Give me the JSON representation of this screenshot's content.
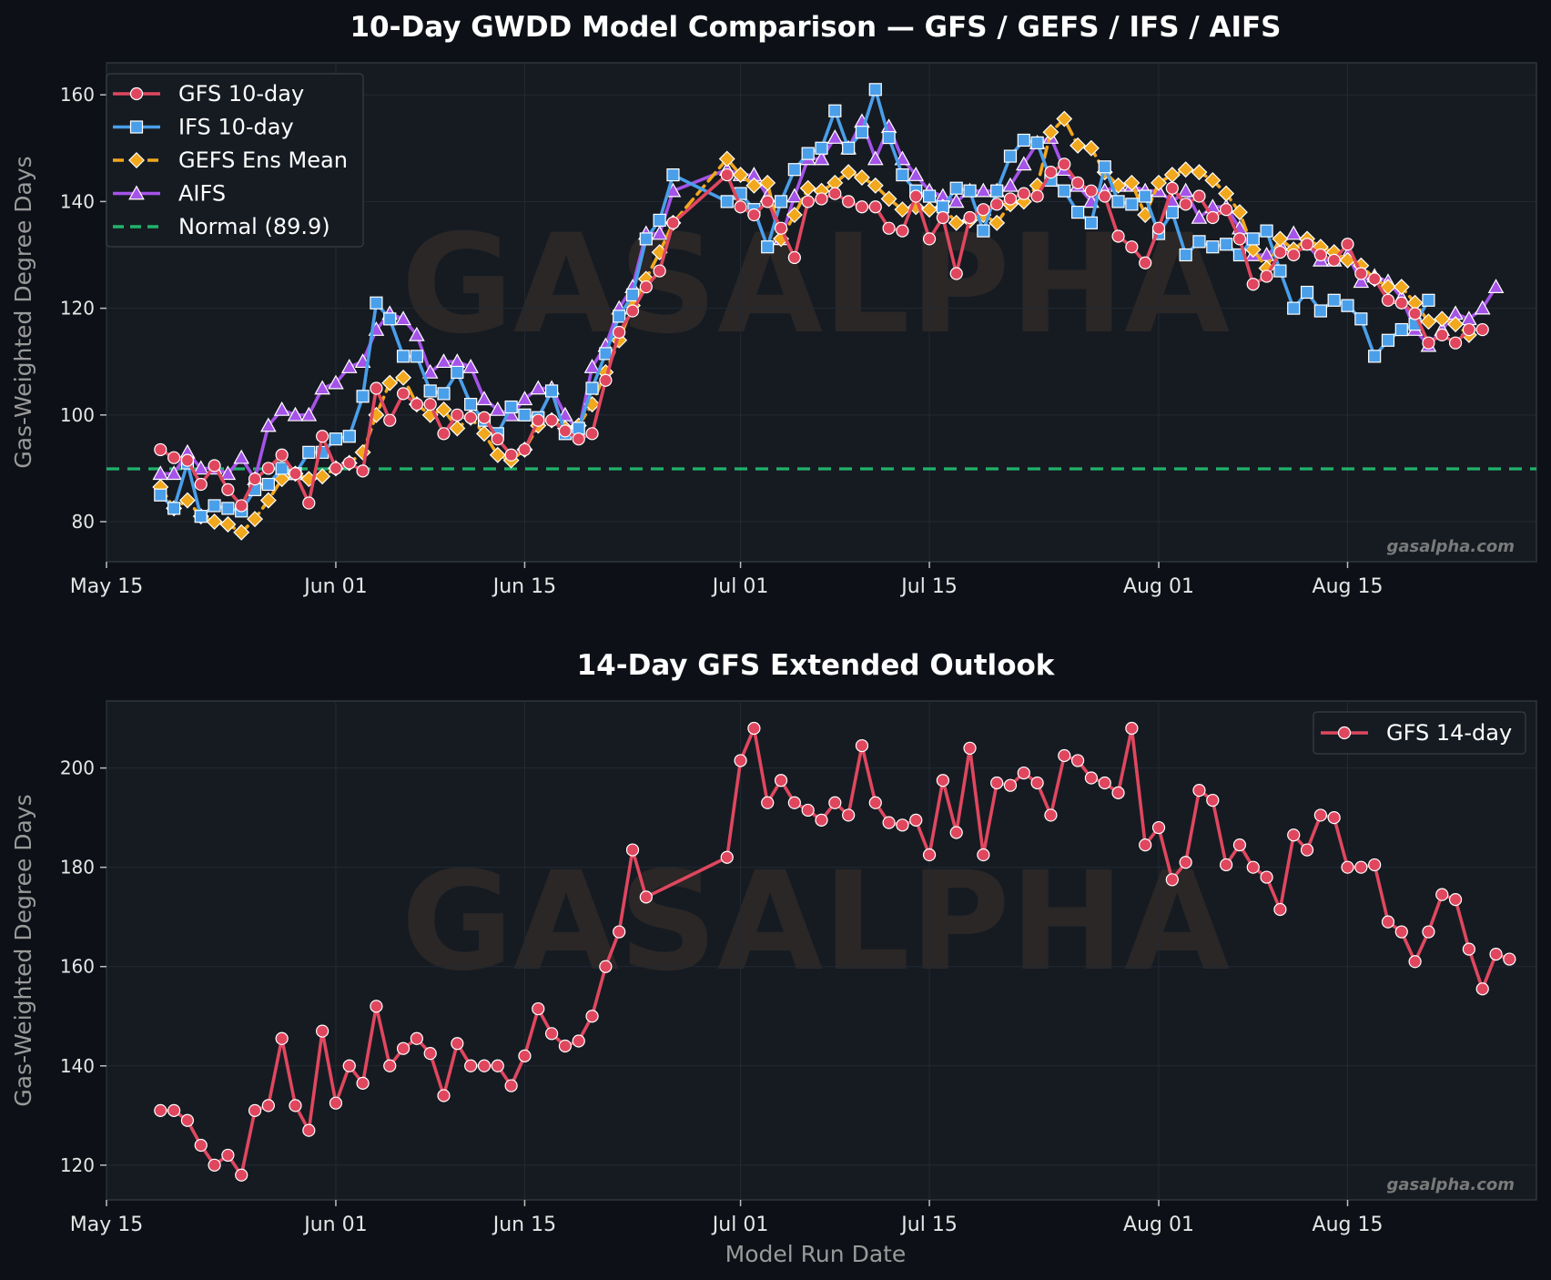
{
  "colors": {
    "background": "#0d1117",
    "panel": "#161b22",
    "grid": "#232a33",
    "gfs": "#e0475f",
    "ifs": "#4a9fea",
    "gefs": "#f2a81d",
    "aifs": "#a553e8",
    "normal": "#21b36b"
  },
  "watermark": "GASALPHA",
  "credit": "gasalpha.com",
  "chart_data": [
    {
      "type": "line",
      "title": "10-Day GWDD Model Comparison — GFS / GEFS / IFS / AIFS",
      "xlabel": "",
      "ylabel": "Gas-Weighted Degree Days",
      "x_type": "date",
      "xlim": [
        "2025-05-15",
        "2025-08-29"
      ],
      "ylim": [
        72.5,
        166
      ],
      "y_ticks": [
        80,
        100,
        120,
        140,
        160
      ],
      "x_ticks": [
        {
          "date": "2025-05-15",
          "label": "May 15"
        },
        {
          "date": "2025-06-01",
          "label": "Jun 01"
        },
        {
          "date": "2025-06-15",
          "label": "Jun 15"
        },
        {
          "date": "2025-07-01",
          "label": "Jul 01"
        },
        {
          "date": "2025-07-15",
          "label": "Jul 15"
        },
        {
          "date": "2025-08-01",
          "label": "Aug 01"
        },
        {
          "date": "2025-08-15",
          "label": "Aug 15"
        }
      ],
      "grid": true,
      "legend_position": "top-left",
      "legend": [
        {
          "label": "GFS 10-day",
          "color": "#e0475f",
          "marker": "circle",
          "dash": false
        },
        {
          "label": "IFS 10-day",
          "color": "#4a9fea",
          "marker": "square",
          "dash": false
        },
        {
          "label": "GEFS Ens Mean",
          "color": "#f2a81d",
          "marker": "diamond",
          "dash": true
        },
        {
          "label": "AIFS",
          "color": "#a553e8",
          "marker": "triangle",
          "dash": false
        },
        {
          "label": "Normal (89.9)",
          "color": "#21b36b",
          "marker": "none",
          "dash": true
        }
      ],
      "reference_line": {
        "label": "Normal (89.9)",
        "value": 89.9
      },
      "series": [
        {
          "name": "AIFS",
          "color": "#a553e8",
          "marker": "triangle",
          "dash": false,
          "start": "2025-05-19",
          "skip_after": "2025-06-26",
          "resume": "2025-06-30",
          "values": [
            89,
            89,
            93,
            90,
            90,
            89,
            92,
            88,
            98,
            101,
            100,
            100,
            105,
            106,
            109,
            110,
            116,
            119,
            118,
            115,
            108,
            110,
            110,
            109,
            103,
            101,
            100,
            103,
            105,
            105,
            100,
            97,
            109,
            113,
            120,
            124,
            134,
            134,
            142,
            146,
            145,
            145,
            141,
            133,
            141,
            148,
            148,
            152,
            150,
            155,
            148,
            154,
            148,
            145,
            142,
            141,
            140,
            142,
            142,
            142,
            143,
            147,
            151,
            152,
            146,
            143,
            140,
            142,
            143,
            143,
            142,
            142,
            140,
            142,
            137,
            139,
            139,
            135,
            130,
            130,
            132,
            134,
            132,
            129,
            129,
            130,
            125,
            126,
            125,
            122,
            116,
            113,
            116,
            119,
            118,
            120,
            124
          ]
        },
        {
          "name": "GEFS Ens Mean",
          "color": "#f2a81d",
          "marker": "diamond",
          "dash": true,
          "start": "2025-05-19",
          "skip_after": "2025-06-26",
          "resume": "2025-06-30",
          "values": [
            86.5,
            82.5,
            84,
            81,
            80,
            79.5,
            78,
            80.5,
            84,
            88,
            89,
            88,
            88.5,
            90,
            91,
            93,
            100,
            106,
            107,
            102,
            100,
            101,
            97.5,
            99.5,
            96.5,
            92.5,
            91.5,
            93.5,
            98,
            99,
            97.5,
            98,
            102,
            108,
            114,
            120.5,
            125.5,
            130.5,
            136,
            148,
            145,
            143,
            143.5,
            133,
            137.5,
            142.5,
            142,
            143.5,
            145.5,
            144.5,
            143,
            140.5,
            138.5,
            139,
            138.5,
            139,
            136,
            136.5,
            137.5,
            136,
            139.5,
            140,
            143,
            153,
            155.5,
            150.5,
            150,
            145.5,
            143,
            143.5,
            137.5,
            143.5,
            145,
            146,
            145.5,
            144,
            141.5,
            138,
            131,
            127.5,
            133,
            131,
            133,
            131.5,
            130.5,
            129,
            128,
            125.5,
            124,
            124,
            121,
            117.5,
            118,
            117,
            115
          ]
        },
        {
          "name": "IFS 10-day",
          "color": "#4a9fea",
          "marker": "square",
          "dash": false,
          "start": "2025-05-19",
          "skip_after": "2025-06-26",
          "resume": "2025-06-30",
          "values": [
            85,
            82.5,
            91,
            81,
            83,
            82.5,
            82,
            86,
            87,
            90,
            89,
            93,
            93,
            95.5,
            96,
            103.5,
            121,
            118,
            111,
            111,
            104.5,
            104,
            108,
            102,
            99,
            96.5,
            101.5,
            100,
            99.5,
            104.5,
            96.5,
            97.5,
            105,
            111.5,
            118.5,
            122.5,
            133,
            136.5,
            145,
            140,
            141.5,
            138.5,
            131.5,
            140,
            146,
            149,
            150,
            157,
            150,
            153,
            161,
            152,
            145,
            142,
            141,
            139,
            142.5,
            142,
            134.5,
            142,
            148.5,
            151.5,
            151,
            144,
            142,
            138,
            136,
            146.5,
            140,
            139.5,
            141,
            134,
            138,
            130,
            132.5,
            131.5,
            132,
            130,
            133,
            134.5,
            127,
            120,
            123,
            119.5,
            121.5,
            120.5,
            118,
            111,
            114,
            116,
            117,
            121.5
          ]
        },
        {
          "name": "GFS 10-day",
          "color": "#e0475f",
          "marker": "circle",
          "dash": false,
          "start": "2025-05-19",
          "skip_after": "2025-06-26",
          "resume": "2025-06-30",
          "values": [
            93.5,
            92,
            91.5,
            87,
            90.5,
            86,
            83,
            88,
            90,
            92.5,
            89,
            83.5,
            96,
            90,
            91,
            89.5,
            105,
            99,
            104,
            102,
            102,
            96.5,
            100,
            99.5,
            99.5,
            95.5,
            92.5,
            93.5,
            99,
            99,
            97,
            95.5,
            96.5,
            106.5,
            115.5,
            119.5,
            124,
            127,
            136,
            145,
            139,
            137.5,
            140,
            135,
            129.5,
            140,
            140.5,
            141.5,
            140,
            139,
            139,
            135,
            134.5,
            141,
            133,
            137,
            126.5,
            137,
            138.5,
            139.5,
            140.5,
            141.5,
            141,
            145.5,
            147,
            143.5,
            142,
            141,
            133.5,
            131.5,
            128.5,
            135,
            142.5,
            139.5,
            141,
            137,
            138.5,
            133,
            124.5,
            126,
            130.5,
            130,
            132,
            130,
            129,
            132,
            126.5,
            125.5,
            121.5,
            121,
            119,
            113.5,
            115,
            113.5,
            116,
            116
          ]
        }
      ]
    },
    {
      "type": "line",
      "title": "14-Day GFS Extended Outlook",
      "xlabel": "Model Run Date",
      "ylabel": "Gas-Weighted Degree Days",
      "x_type": "date",
      "xlim": [
        "2025-05-15",
        "2025-08-29"
      ],
      "ylim": [
        113,
        213.5
      ],
      "y_ticks": [
        120,
        140,
        160,
        180,
        200
      ],
      "x_ticks": [
        {
          "date": "2025-05-15",
          "label": "May 15"
        },
        {
          "date": "2025-06-01",
          "label": "Jun 01"
        },
        {
          "date": "2025-06-15",
          "label": "Jun 15"
        },
        {
          "date": "2025-07-01",
          "label": "Jul 01"
        },
        {
          "date": "2025-07-15",
          "label": "Jul 15"
        },
        {
          "date": "2025-08-01",
          "label": "Aug 01"
        },
        {
          "date": "2025-08-15",
          "label": "Aug 15"
        }
      ],
      "grid": true,
      "legend_position": "top-right",
      "legend": [
        {
          "label": "GFS 14-day",
          "color": "#e0475f",
          "marker": "circle",
          "dash": false
        }
      ],
      "series": [
        {
          "name": "GFS 14-day",
          "color": "#e0475f",
          "marker": "circle",
          "dash": false,
          "start": "2025-05-19",
          "skip_after": "2025-06-24",
          "resume": "2025-06-30",
          "values": [
            131,
            131,
            129,
            124,
            120,
            122,
            118,
            131,
            132,
            145.5,
            132,
            127,
            147,
            132.5,
            140,
            136.5,
            152,
            140,
            143.5,
            145.5,
            142.5,
            134,
            144.5,
            140,
            140,
            140,
            136,
            142,
            151.5,
            146.5,
            144,
            145,
            150,
            160,
            167,
            183.5,
            174,
            182,
            201.5,
            208,
            193,
            197.5,
            193,
            191.5,
            189.5,
            193,
            190.5,
            204.5,
            193,
            189,
            188.5,
            189.5,
            182.5,
            197.5,
            187,
            204,
            182.5,
            197,
            196.5,
            199,
            197,
            190.5,
            202.5,
            201.5,
            198,
            197,
            195,
            208,
            184.5,
            188,
            177.5,
            181,
            195.5,
            193.5,
            180.5,
            184.5,
            180,
            178,
            171.5,
            186.5,
            183.5,
            190.5,
            190,
            180,
            180,
            180.5,
            169,
            167,
            161,
            167,
            174.5,
            173.5,
            163.5,
            155.5,
            162.5,
            161.5
          ]
        }
      ]
    }
  ]
}
